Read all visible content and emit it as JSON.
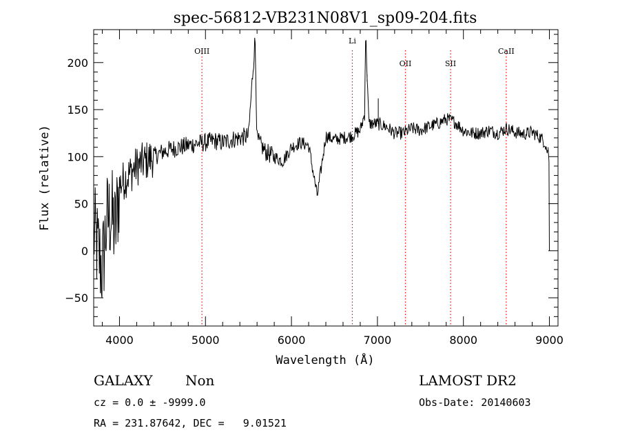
{
  "chart_data": {
    "type": "line",
    "title": "spec-56812-VB231N08V1_sp09-204.fits",
    "xlabel": "Wavelength (Å)",
    "ylabel": "Flux (relative)",
    "xlim": [
      3700,
      9100
    ],
    "ylim": [
      -80,
      235
    ],
    "x_ticks": [
      4000,
      5000,
      6000,
      7000,
      8000,
      9000
    ],
    "y_ticks": [
      -50,
      0,
      50,
      100,
      150,
      200
    ],
    "grid": false,
    "line_color": "#000000",
    "marker_color": "#ff0000",
    "emission_lines": [
      {
        "name": "OIII",
        "wavelength": 4959
      },
      {
        "name": "Li",
        "wavelength": 6708
      },
      {
        "name": "OII",
        "wavelength": 7325
      },
      {
        "name": "SII",
        "wavelength": 7850
      },
      {
        "name": "CaII",
        "wavelength": 8498
      }
    ],
    "series": [
      {
        "x": [
          3700,
          3750,
          3800,
          3850,
          3900,
          3950,
          4000,
          4100,
          4200,
          4300,
          4400,
          4500,
          4600,
          4700,
          4800,
          4900,
          5000,
          5100,
          5200,
          5300,
          5400,
          5500,
          5577,
          5600,
          5700,
          5800,
          5900,
          6000,
          6100,
          6200,
          6300,
          6400,
          6500,
          6600,
          6700,
          6800,
          6850,
          6863,
          6900,
          7000,
          7100,
          7200,
          7300,
          7400,
          7500,
          7600,
          7700,
          7800,
          7900,
          8000,
          8100,
          8200,
          8300,
          8400,
          8500,
          8600,
          8700,
          8800,
          8900,
          8950,
          8990,
          9000
        ],
        "y": [
          20,
          0,
          -20,
          30,
          40,
          20,
          70,
          80,
          90,
          95,
          100,
          105,
          108,
          110,
          112,
          114,
          115,
          117,
          115,
          118,
          120,
          122,
          226,
          118,
          105,
          100,
          95,
          110,
          115,
          112,
          58,
          122,
          118,
          120,
          122,
          128,
          145,
          232,
          135,
          135,
          132,
          125,
          125,
          130,
          128,
          132,
          135,
          140,
          137,
          128,
          125,
          125,
          128,
          125,
          130,
          126,
          124,
          126,
          120,
          115,
          100,
          0
        ]
      }
    ]
  },
  "info": {
    "object_class": "GALAXY",
    "subclass": "Non",
    "survey": "LAMOST DR2",
    "cz": "cz = 0.0 ± -9999.0",
    "obs_date": "Obs-Date: 20140603",
    "radec": "RA = 231.87642, DEC =   9.01521"
  }
}
